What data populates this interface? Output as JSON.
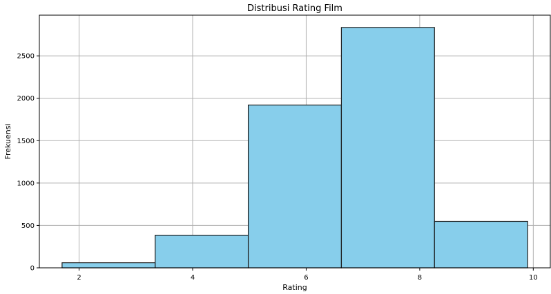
{
  "chart_data": {
    "type": "bar",
    "title": "Distribusi Rating Film",
    "xlabel": "Rating",
    "ylabel": "Frekuensi",
    "bins": [
      {
        "x0": 1.7,
        "x1": 3.34,
        "value": 60
      },
      {
        "x0": 3.34,
        "x1": 4.98,
        "value": 385
      },
      {
        "x0": 4.98,
        "x1": 6.62,
        "value": 1920
      },
      {
        "x0": 6.62,
        "x1": 8.26,
        "value": 2835
      },
      {
        "x0": 8.26,
        "x1": 9.9,
        "value": 548
      }
    ],
    "xlim": [
      1.3,
      10.3
    ],
    "ylim": [
      0,
      2980
    ],
    "xticks": [
      2,
      4,
      6,
      8,
      10
    ],
    "yticks": [
      0,
      500,
      1000,
      1500,
      2000,
      2500
    ],
    "grid": true,
    "bar_color": "#87ceeb",
    "edge_color": "#1a1a1a",
    "grid_color": "#b0b0b0"
  }
}
